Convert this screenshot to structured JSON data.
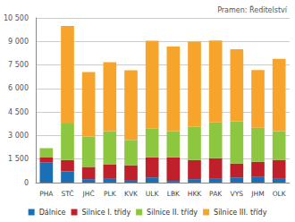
{
  "chart_data": {
    "type": "bar",
    "stacked": true,
    "grid": true,
    "legend": "bottom",
    "source": "Pramen: Ředitelství",
    "categories": [
      "PHA",
      "STČ",
      "JHČ",
      "PLK",
      "KVK",
      "ULK",
      "LBK",
      "HKK",
      "PAK",
      "VYS",
      "JHM",
      "OLK"
    ],
    "series": [
      {
        "name": "Dálnice",
        "color": "#1a6fb5",
        "values": [
          1300,
          720,
          220,
          280,
          170,
          330,
          110,
          220,
          280,
          330,
          390,
          280
        ]
      },
      {
        "name": "Silnice I. třídy",
        "color": "#c0202a",
        "values": [
          330,
          720,
          780,
          890,
          940,
          1280,
          1500,
          1220,
          1280,
          890,
          940,
          1170
        ]
      },
      {
        "name": "Silnice II. třídy",
        "color": "#8dc63f",
        "values": [
          560,
          2330,
          1940,
          2110,
          1610,
          1830,
          1670,
          2110,
          2280,
          2670,
          2170,
          1830
        ]
      },
      {
        "name": "Silnice III. třídy",
        "color": "#f7a42c",
        "values": [
          0,
          6220,
          4110,
          4390,
          4440,
          5610,
          5390,
          5440,
          5220,
          4610,
          3670,
          4610
        ]
      }
    ],
    "ylim": [
      0,
      10500
    ],
    "yticks": [
      0,
      {
        "value": 1500,
        "label": "1 500"
      },
      {
        "value": 3000,
        "label": "3 000"
      },
      {
        "value": 4500,
        "label": "4 500"
      },
      {
        "value": 6000,
        "label": "6 000"
      },
      {
        "value": 7500,
        "label": "7 500"
      },
      {
        "value": 9000,
        "label": "9 000"
      },
      {
        "value": 10500,
        "label": "10 500"
      }
    ]
  }
}
